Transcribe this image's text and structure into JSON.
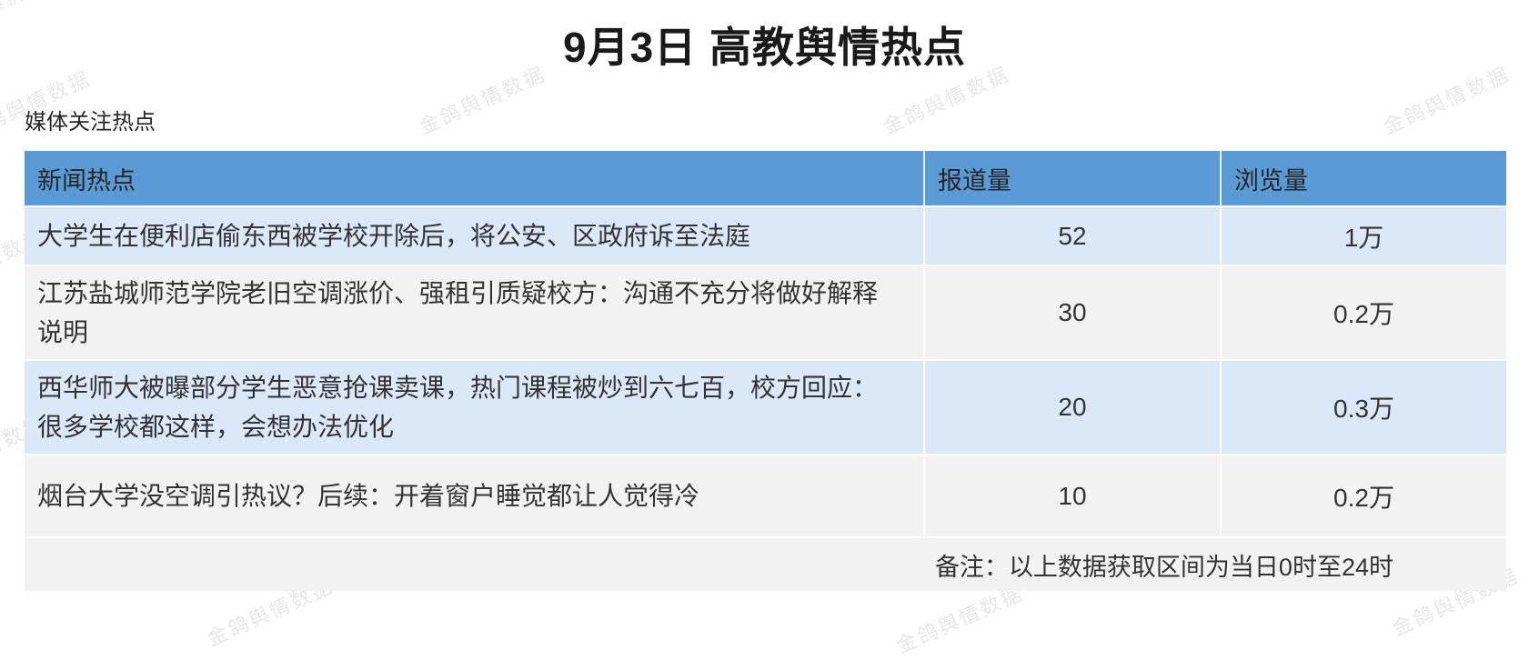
{
  "title": "9月3日 高教舆情热点",
  "section_title": "媒体关注热点",
  "watermark": "金鸽舆情数据",
  "table": {
    "columns": [
      "新闻热点",
      "报道量",
      "浏览量"
    ],
    "rows": [
      {
        "topic": "大学生在便利店偷东西被学校开除后，将公安、区政府诉至法庭",
        "reports": "52",
        "views": "1万"
      },
      {
        "topic": "江苏盐城师范学院老旧空调涨价、强租引质疑校方：沟通不充分将做好解释说明",
        "reports": "30",
        "views": "0.2万"
      },
      {
        "topic": "西华师大被曝部分学生恶意抢课卖课，热门课程被炒到六七百，校方回应：很多学校都这样，会想办法优化",
        "reports": "20",
        "views": "0.3万"
      },
      {
        "topic": "烟台大学没空调引热议？后续：开着窗户睡觉都让人觉得冷",
        "reports": "10",
        "views": "0.2万"
      }
    ],
    "note": "备注：以上数据获取区间为当日0时至24时"
  },
  "colors": {
    "header_bg": "#5B9BD5",
    "row_blue": "#DBE8F8",
    "row_gray": "#F2F2F2",
    "text": "#333333"
  }
}
